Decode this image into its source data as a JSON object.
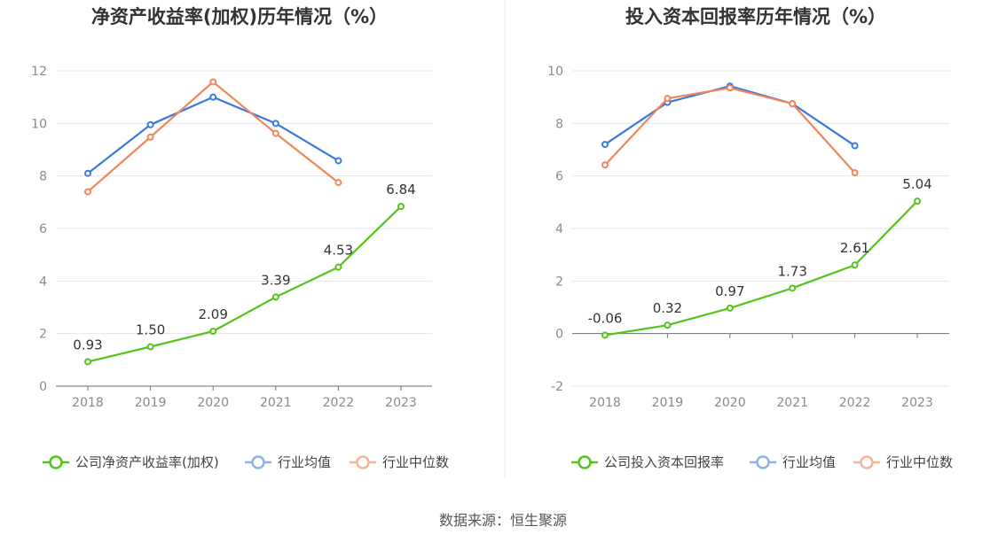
{
  "source": "数据来源：恒生聚源",
  "chart_data": [
    {
      "type": "line",
      "title": "净资产收益率(加权)历年情况（%）",
      "categories": [
        "2018",
        "2019",
        "2020",
        "2021",
        "2022",
        "2023"
      ],
      "ylim": [
        0,
        12
      ],
      "yticks": [
        0,
        2,
        4,
        6,
        8,
        10,
        12
      ],
      "grid": true,
      "legend_position": "bottom",
      "series": [
        {
          "name": "公司净资产收益率(加权)",
          "color": "#52c41a",
          "values": [
            0.93,
            1.5,
            2.09,
            3.39,
            4.53,
            6.84
          ],
          "labels": [
            "0.93",
            "1.50",
            "2.09",
            "3.39",
            "4.53",
            "6.84"
          ]
        },
        {
          "name": "行业均值",
          "color": "#3a78e0",
          "values": [
            8.1,
            9.95,
            11.0,
            10.0,
            8.58,
            null
          ]
        },
        {
          "name": "行业中位数",
          "color": "#f0865a",
          "values": [
            7.4,
            9.48,
            11.58,
            9.62,
            7.75,
            null
          ]
        }
      ]
    },
    {
      "type": "line",
      "title": "投入资本回报率历年情况（%）",
      "categories": [
        "2018",
        "2019",
        "2020",
        "2021",
        "2022",
        "2023"
      ],
      "ylim": [
        -2,
        10
      ],
      "yticks": [
        -2,
        0,
        2,
        4,
        6,
        8,
        10
      ],
      "grid": true,
      "legend_position": "bottom",
      "series": [
        {
          "name": "公司投入资本回报率",
          "color": "#52c41a",
          "values": [
            -0.06,
            0.32,
            0.97,
            1.73,
            2.61,
            5.04
          ],
          "labels": [
            "-0.06",
            "0.32",
            "0.97",
            "1.73",
            "2.61",
            "5.04"
          ]
        },
        {
          "name": "行业均值",
          "color": "#3a78e0",
          "values": [
            7.2,
            8.8,
            9.42,
            8.75,
            7.15,
            null
          ]
        },
        {
          "name": "行业中位数",
          "color": "#f0865a",
          "values": [
            6.42,
            8.95,
            9.35,
            8.75,
            6.12,
            null
          ]
        }
      ]
    }
  ]
}
